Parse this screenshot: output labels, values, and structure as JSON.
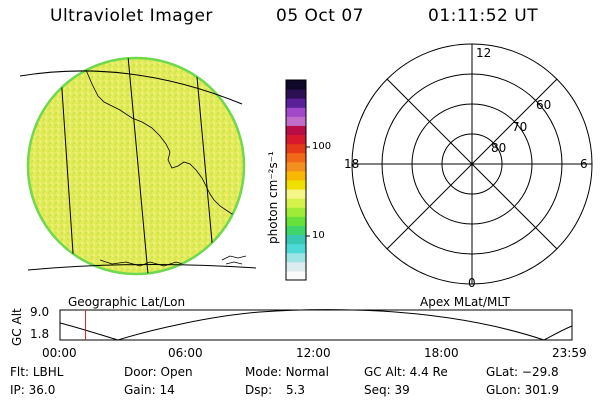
{
  "header": {
    "title": "Ultraviolet Imager",
    "date": "05 Oct 07",
    "time": "01:11:52 UT"
  },
  "colors": {
    "disk_fill": "#e5ec5c",
    "disk_edge": "#6fd84e",
    "background": "#ffffff",
    "lines": "#000000",
    "marker": "#d41e1e"
  },
  "left_panel": {
    "caption": "Geographic Lat/Lon"
  },
  "colorbar": {
    "label": "photon cm⁻²s⁻¹",
    "ticks": [
      "100",
      "10"
    ],
    "colors": [
      "#fafafa",
      "#dcecf0",
      "#9ce4e6",
      "#4ed8d8",
      "#38c8b4",
      "#40d46c",
      "#68e03c",
      "#a0ea38",
      "#d4f24a",
      "#f6f688",
      "#f0e000",
      "#f8b800",
      "#f49020",
      "#f06818",
      "#e43a1a",
      "#d8182c",
      "#b80c44",
      "#c06cc8",
      "#a048c8",
      "#5a2098",
      "#2c1054",
      "#100828"
    ]
  },
  "polar": {
    "caption": "Apex MLat/MLT",
    "labels": {
      "top": "12",
      "bottom": "0",
      "left": "18",
      "right": "6"
    },
    "ring_labels": [
      "60",
      "70",
      "80"
    ]
  },
  "orbit": {
    "ylabel": "GC Alt",
    "ymax": "9.0",
    "ymin": "1.8",
    "xticks": [
      "00:00",
      "06:00",
      "12:00",
      "18:00",
      "23:59"
    ],
    "current_time_fraction": 0.0499
  },
  "info": {
    "flt_label": "Flt:",
    "flt_value": "LBHL",
    "ip_label": "IP:",
    "ip_value": "36.0",
    "door_label": "Door:",
    "door_value": "Open",
    "gain_label": "Gain:",
    "gain_value": "14",
    "mode_label": "Mode:",
    "mode_value": "Normal",
    "dsp_label": "Dsp:",
    "dsp_value": "5.3",
    "gcalt_label": "GC Alt:",
    "gcalt_value": "4.4 Re",
    "seq_label": "Seq:",
    "seq_value": "39",
    "glat_label": "GLat:",
    "glat_value": "−29.8",
    "glon_label": "GLon:",
    "glon_value": "301.9"
  }
}
